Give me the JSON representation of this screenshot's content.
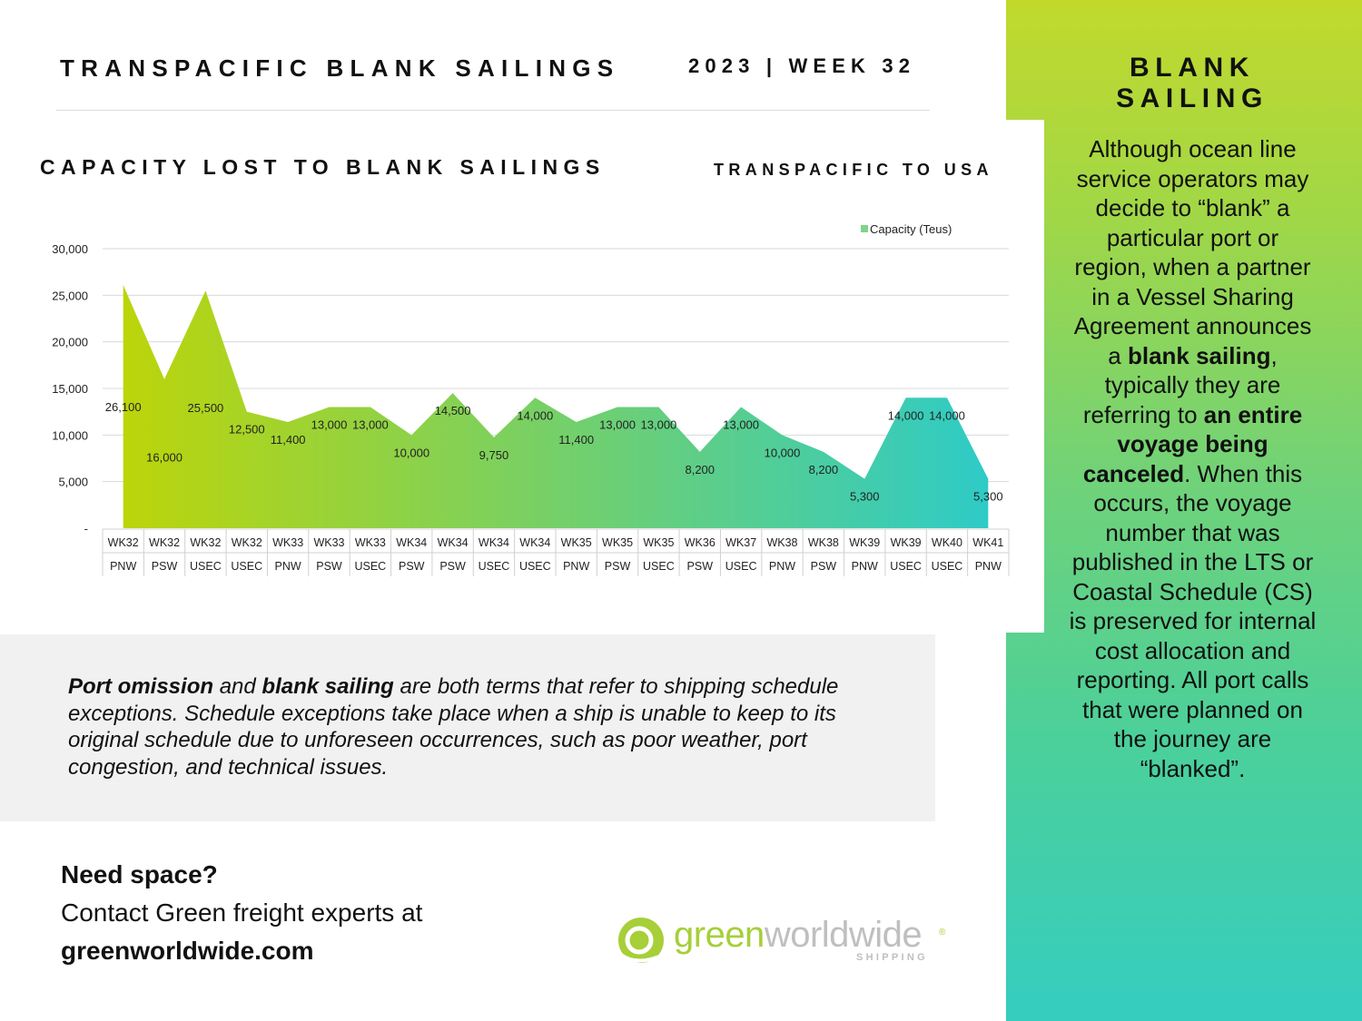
{
  "header": {
    "title": "TRANSPACIFIC BLANK SAILINGS",
    "week": "2023 | WEEK 32"
  },
  "side": {
    "heading_line1": "BLANK",
    "heading_line2": "SAILING",
    "p1": "Although ocean line service operators may decide to “blank” a particular port or region, when a partner in a Vessel Sharing Agreement announces a ",
    "b1": "blank sailing",
    "p2": ", typically they are referring to ",
    "b2": "an entire voyage being canceled",
    "p3": ". When this occurs, the voyage number that was published in the LTS or Coastal Schedule (CS) is preserved for internal cost allocation and reporting. All port calls that were planned on the journey are “blanked”."
  },
  "info": {
    "b1": "Port omission",
    "t1": " and ",
    "b2": "blank sailing",
    "t2": " are both terms that refer to shipping schedule exceptions. Schedule exceptions take place when a ship is unable to keep to its original schedule due to unforeseen occurrences, such as poor weather, port congestion, and technical issues."
  },
  "cta": {
    "question": "Need space?",
    "line": "Contact Green freight experts at",
    "url": "greenworldwide.com"
  },
  "logo": {
    "green_text": "green",
    "rest_text": "worldwide",
    "sub_text": "SHIPPING",
    "reg": "®"
  },
  "chart_data": {
    "type": "area",
    "title": "CAPACITY LOST TO BLANK SAILINGS",
    "subtitle": "TRANSPACIFIC TO USA",
    "legend": {
      "entries": [
        "Capacity (Teus)"
      ],
      "placement": "top-right"
    },
    "ylim": [
      0,
      30000
    ],
    "yticks": [
      0,
      5000,
      10000,
      15000,
      20000,
      25000,
      30000
    ],
    "ytick_labels": [
      "-",
      "5,000",
      "10,000",
      "15,000",
      "20,000",
      "25,000",
      "30,000"
    ],
    "grid": true,
    "colors": {
      "start": "#bcd50a",
      "end": "#2ecbc7",
      "legend": "#7fd48a"
    },
    "categories": [
      [
        "WK32",
        "PNW"
      ],
      [
        "WK32",
        "PSW"
      ],
      [
        "WK32",
        "USEC"
      ],
      [
        "WK32",
        "USEC"
      ],
      [
        "WK33",
        "PNW"
      ],
      [
        "WK33",
        "PSW"
      ],
      [
        "WK33",
        "USEC"
      ],
      [
        "WK34",
        "PSW"
      ],
      [
        "WK34",
        "PSW"
      ],
      [
        "WK34",
        "USEC"
      ],
      [
        "WK34",
        "USEC"
      ],
      [
        "WK35",
        "PNW"
      ],
      [
        "WK35",
        "PSW"
      ],
      [
        "WK35",
        "USEC"
      ],
      [
        "WK36",
        "PSW"
      ],
      [
        "WK37",
        "USEC"
      ],
      [
        "WK38",
        "PNW"
      ],
      [
        "WK38",
        "PSW"
      ],
      [
        "WK39",
        "PNW"
      ],
      [
        "WK39",
        "USEC"
      ],
      [
        "WK40",
        "USEC"
      ],
      [
        "WK41",
        "PNW"
      ]
    ],
    "series": [
      {
        "name": "Capacity (Teus)",
        "values": [
          26100,
          16000,
          25500,
          12500,
          11400,
          13000,
          13000,
          10000,
          14500,
          9750,
          14000,
          11400,
          13000,
          13000,
          8200,
          13000,
          10000,
          8200,
          5300,
          14000,
          14000,
          5300
        ],
        "labels": [
          "26,100",
          "16,000",
          "25,500",
          "12,500",
          "11,400",
          "13,000",
          "13,000",
          "10,000",
          "14,500",
          "9,750",
          "14,000",
          "11,400",
          "13,000",
          "13,000",
          "8,200",
          "13,000",
          "10,000",
          "8,200",
          "5,300",
          "14,000",
          "14,000",
          "5,300"
        ]
      }
    ]
  }
}
